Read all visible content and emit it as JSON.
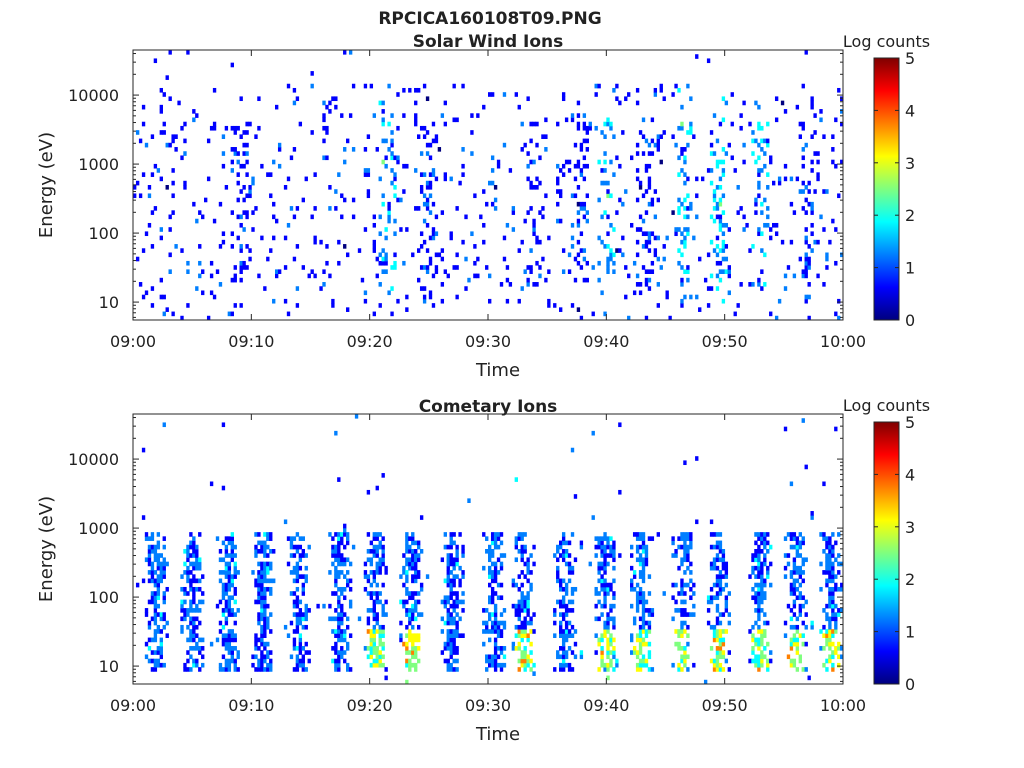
{
  "figure": {
    "title_line1": "RPCICA160108T09.PNG"
  },
  "colormap": [
    "#00007f",
    "#0000ff",
    "#007fff",
    "#00ffff",
    "#7fff7f",
    "#ffff00",
    "#ff7f00",
    "#ff0000",
    "#7f0000"
  ],
  "chart_data": [
    {
      "type": "heatmap",
      "title": "Solar Wind Ions",
      "xlabel": "Time",
      "ylabel": "Energy (eV)",
      "x_ticks": [
        "09:00",
        "09:10",
        "09:20",
        "09:30",
        "09:40",
        "09:50",
        "10:00"
      ],
      "x_range_minutes": [
        0,
        60
      ],
      "y_scale": "log",
      "y_ticks": [
        10,
        100,
        1000,
        10000
      ],
      "y_tick_labels": [
        "10",
        "100",
        "1000",
        "10000"
      ],
      "y_range": [
        5.5,
        45000
      ],
      "colorbar": {
        "title": "Log counts",
        "range": [
          0,
          5
        ],
        "ticks": [
          "0",
          "1",
          "2",
          "3",
          "4",
          "5"
        ]
      },
      "activity": "sparse",
      "bursts_minutes": [
        9,
        21.5,
        25,
        34,
        38,
        40,
        43.5,
        46.5,
        49.5,
        53,
        57
      ],
      "hot_bursts_minutes": [
        21.5,
        40,
        46.5,
        49.5,
        53
      ]
    },
    {
      "type": "heatmap",
      "title": "Cometary Ions",
      "xlabel": "Time",
      "ylabel": "Energy (eV)",
      "x_ticks": [
        "09:00",
        "09:10",
        "09:20",
        "09:30",
        "09:40",
        "09:50",
        "10:00"
      ],
      "x_range_minutes": [
        0,
        60
      ],
      "y_scale": "log",
      "y_ticks": [
        10,
        100,
        1000,
        10000
      ],
      "y_tick_labels": [
        "10",
        "100",
        "1000",
        "10000"
      ],
      "y_range": [
        5.5,
        45000
      ],
      "colorbar": {
        "title": "Log counts",
        "range": [
          0,
          5
        ],
        "ticks": [
          "0",
          "1",
          "2",
          "3",
          "4",
          "5"
        ]
      },
      "activity": "bursty",
      "bursts_minutes": [
        2,
        5,
        8,
        11,
        14,
        17.5,
        20.5,
        23.5,
        27,
        30.5,
        33,
        36.5,
        40,
        43,
        46.5,
        49.5,
        53,
        56,
        59
      ],
      "hot_bursts_minutes": [
        20.5,
        23.5,
        33,
        40,
        43,
        46.5,
        49.5,
        53,
        56,
        59
      ]
    }
  ]
}
